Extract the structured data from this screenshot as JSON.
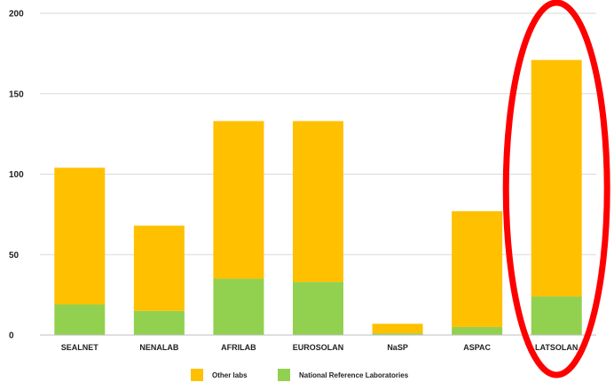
{
  "chart_data": {
    "type": "bar",
    "stacked": true,
    "categories": [
      "SEALNET",
      "NENALAB",
      "AFRILAB",
      "EUROSOLAN",
      "NaSP",
      "ASPAC",
      "LATSOLAN"
    ],
    "series": [
      {
        "name": "National Reference Laboratories",
        "color": "#92d050",
        "values": [
          19,
          15,
          35,
          33,
          1,
          5,
          24
        ]
      },
      {
        "name": "Other labs",
        "color": "#ffc000",
        "values": [
          85,
          53,
          98,
          100,
          6,
          72,
          147
        ]
      }
    ],
    "ylim": [
      0,
      200
    ],
    "yticks": [
      0,
      50,
      100,
      150,
      200
    ],
    "grid": true,
    "legend_position": "bottom",
    "legend_order": [
      "Other labs",
      "National Reference Laboratories"
    ],
    "annotation": {
      "type": "red-ellipse",
      "highlighted_category": "LATSOLAN",
      "color": "#ff0000"
    }
  }
}
